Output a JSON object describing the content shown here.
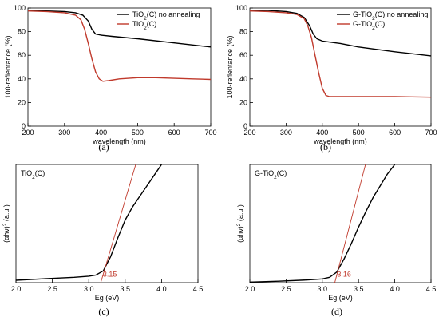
{
  "chart_data": [
    {
      "panel_label": "(a)",
      "type": "line",
      "xlabel": "wavelength (nm)",
      "ylabel": "100-reflentance (%)",
      "xlim": [
        200,
        700
      ],
      "ylim": [
        0,
        100
      ],
      "xticks": [
        200,
        300,
        400,
        500,
        600,
        700
      ],
      "yticks": [
        0,
        20,
        40,
        60,
        80,
        100
      ],
      "legend_position": "top-right",
      "grid": false,
      "series": [
        {
          "name_parts": [
            "TiO",
            "2",
            "(C) no annealing"
          ],
          "color": "#000000",
          "points": [
            [
              200,
              98
            ],
            [
              250,
              97.5
            ],
            [
              300,
              97
            ],
            [
              330,
              96
            ],
            [
              350,
              94
            ],
            [
              365,
              89
            ],
            [
              375,
              82
            ],
            [
              385,
              78
            ],
            [
              400,
              77
            ],
            [
              430,
              76
            ],
            [
              500,
              74
            ],
            [
              600,
              70.5
            ],
            [
              700,
              67
            ]
          ]
        },
        {
          "name_parts": [
            "TiO",
            "2",
            "(C)"
          ],
          "color": "#c0392b",
          "points": [
            [
              200,
              97.5
            ],
            [
              250,
              97
            ],
            [
              300,
              96
            ],
            [
              330,
              94
            ],
            [
              345,
              90
            ],
            [
              355,
              82
            ],
            [
              365,
              70
            ],
            [
              375,
              57
            ],
            [
              385,
              46
            ],
            [
              395,
              40
            ],
            [
              405,
              38
            ],
            [
              420,
              38.5
            ],
            [
              450,
              40
            ],
            [
              500,
              41
            ],
            [
              550,
              41
            ],
            [
              600,
              40.5
            ],
            [
              650,
              40
            ],
            [
              700,
              39.5
            ]
          ]
        }
      ]
    },
    {
      "panel_label": "(b)",
      "type": "line",
      "xlabel": "wavelength (nm)",
      "ylabel": "100-reflentance (%)",
      "xlim": [
        200,
        700
      ],
      "ylim": [
        0,
        100
      ],
      "xticks": [
        200,
        300,
        400,
        500,
        600,
        700
      ],
      "yticks": [
        0,
        20,
        40,
        60,
        80,
        100
      ],
      "legend_position": "top-right",
      "grid": false,
      "series": [
        {
          "name_parts": [
            "G-TiO",
            "2",
            "(C) no annealing"
          ],
          "color": "#000000",
          "points": [
            [
              200,
              98
            ],
            [
              250,
              98
            ],
            [
              300,
              97
            ],
            [
              330,
              95.5
            ],
            [
              350,
              92
            ],
            [
              365,
              85
            ],
            [
              375,
              78
            ],
            [
              385,
              74
            ],
            [
              400,
              72
            ],
            [
              450,
              70
            ],
            [
              500,
              67
            ],
            [
              600,
              63
            ],
            [
              700,
              59.5
            ]
          ]
        },
        {
          "name_parts": [
            "G-TiO",
            "2",
            "(C)"
          ],
          "color": "#c0392b",
          "points": [
            [
              200,
              97.5
            ],
            [
              250,
              97
            ],
            [
              300,
              96
            ],
            [
              330,
              94.5
            ],
            [
              350,
              91
            ],
            [
              360,
              85
            ],
            [
              370,
              75
            ],
            [
              380,
              60
            ],
            [
              390,
              45
            ],
            [
              400,
              32
            ],
            [
              410,
              26
            ],
            [
              420,
              25
            ],
            [
              450,
              25
            ],
            [
              500,
              25
            ],
            [
              600,
              25
            ],
            [
              700,
              24.5
            ]
          ]
        }
      ]
    },
    {
      "panel_label": "(c)",
      "type": "line",
      "xlabel": "Eg (eV)",
      "ylabel_parts": [
        "(αhν)",
        "2",
        " (a.u.)"
      ],
      "xlim": [
        2.0,
        4.5
      ],
      "ylim": [
        0,
        100
      ],
      "yaxis_has_ticks": false,
      "xticks": [
        2.0,
        2.5,
        3.0,
        3.5,
        4.0,
        4.5
      ],
      "sample_label_parts": [
        "TiO",
        "2",
        "(C)"
      ],
      "annotation": {
        "text": "3.15",
        "x": 3.15,
        "y": 5,
        "color": "#c0392b"
      },
      "series": [
        {
          "name": "",
          "color": "#000000",
          "points": [
            [
              2.0,
              2
            ],
            [
              2.4,
              3.3
            ],
            [
              2.8,
              4.5
            ],
            [
              3.0,
              5.5
            ],
            [
              3.1,
              6.5
            ],
            [
              3.2,
              10
            ],
            [
              3.3,
              22
            ],
            [
              3.4,
              38
            ],
            [
              3.5,
              53
            ],
            [
              3.6,
              64
            ],
            [
              3.7,
              73
            ],
            [
              3.8,
              82
            ],
            [
              3.9,
              91
            ],
            [
              4.0,
              100
            ]
          ]
        },
        {
          "name": "tangent",
          "color": "#c0392b",
          "points": [
            [
              3.15,
              -3
            ],
            [
              3.65,
              101
            ]
          ]
        }
      ]
    },
    {
      "panel_label": "(d)",
      "type": "line",
      "xlabel": "Eg (eV)",
      "ylabel_parts": [
        "(αhν)",
        "2",
        " (a.u.)"
      ],
      "xlim": [
        2.0,
        4.5
      ],
      "ylim": [
        0,
        100
      ],
      "yaxis_has_ticks": false,
      "xticks": [
        2.0,
        2.5,
        3.0,
        3.5,
        4.0,
        4.5
      ],
      "sample_label_parts": [
        "G-TiO",
        "2",
        "(C)"
      ],
      "annotation": {
        "text": "3.16",
        "x": 3.16,
        "y": 5,
        "color": "#c0392b"
      },
      "series": [
        {
          "name": "",
          "color": "#000000",
          "points": [
            [
              2.0,
              0.5
            ],
            [
              2.4,
              1.2
            ],
            [
              2.8,
              2.3
            ],
            [
              3.0,
              3.2
            ],
            [
              3.1,
              4.5
            ],
            [
              3.2,
              9
            ],
            [
              3.3,
              20
            ],
            [
              3.4,
              33
            ],
            [
              3.5,
              47
            ],
            [
              3.6,
              60
            ],
            [
              3.7,
              72
            ],
            [
              3.8,
              82
            ],
            [
              3.9,
              92
            ],
            [
              4.0,
              100
            ]
          ]
        },
        {
          "name": "tangent",
          "color": "#c0392b",
          "points": [
            [
              3.16,
              -3
            ],
            [
              3.6,
              101
            ]
          ]
        }
      ]
    }
  ]
}
